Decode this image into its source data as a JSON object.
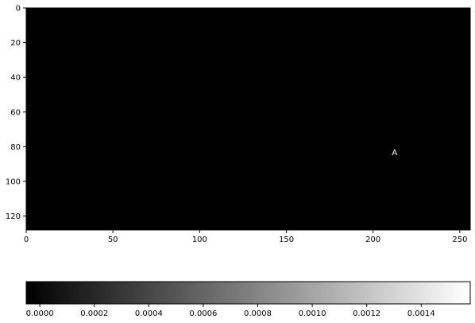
{
  "chart_data": {
    "type": "heatmap",
    "title": "",
    "xlabel": "",
    "ylabel": "",
    "xlim": [
      0,
      256
    ],
    "ylim": [
      128,
      0
    ],
    "x_ticks": [
      0,
      50,
      100,
      150,
      200,
      250
    ],
    "y_ticks": [
      0,
      20,
      40,
      60,
      80,
      100,
      120
    ],
    "colormap": "gray",
    "background_value": 0.0,
    "glyph": {
      "text": "A",
      "value": 0.0015,
      "center_x": 211,
      "baseline_y": 84,
      "cap_height": 56
    },
    "colorbar": {
      "orientation": "horizontal",
      "range": [
        -5e-05,
        0.00158
      ],
      "ticks": [
        "0.0000",
        "0.0002",
        "0.0004",
        "0.0006",
        "0.0008",
        "0.0010",
        "0.0012",
        "0.0014"
      ],
      "tick_values": [
        0.0,
        0.0002,
        0.0004,
        0.0006,
        0.0008,
        0.001,
        0.0012,
        0.0014
      ]
    }
  }
}
